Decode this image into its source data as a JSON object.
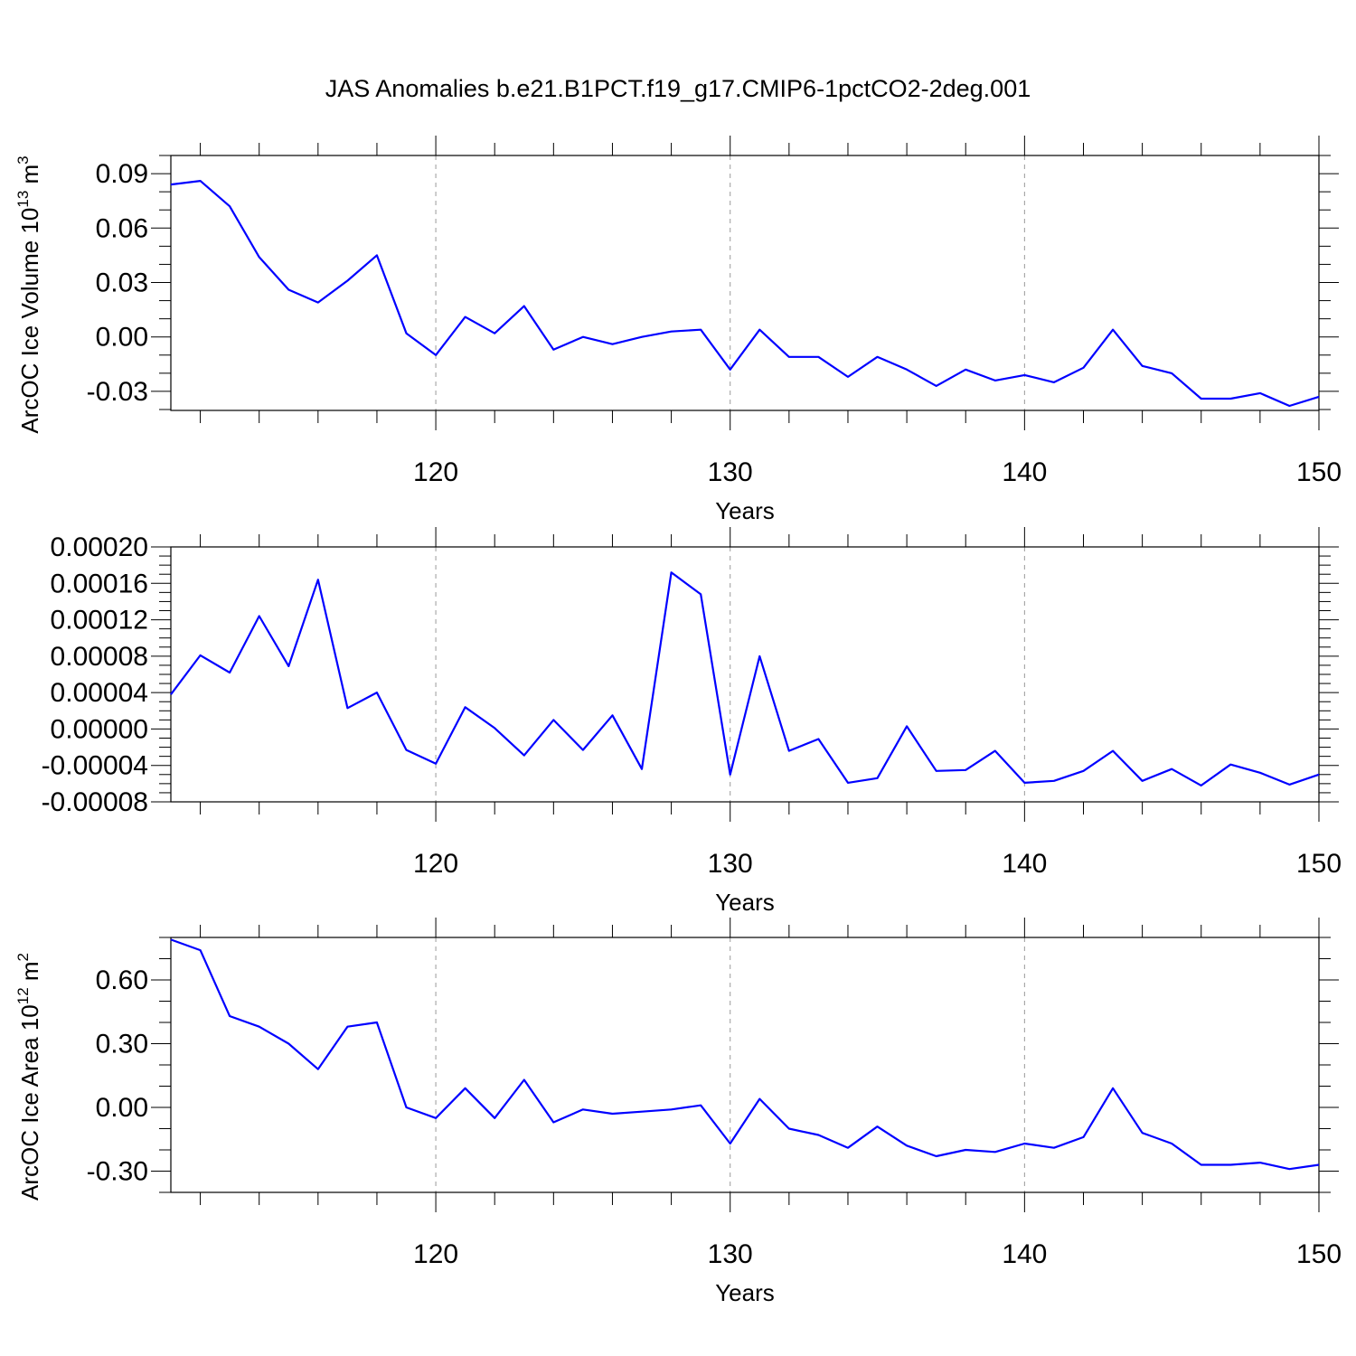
{
  "title": "JAS Anomalies b.e21.B1PCT.f19_g17.CMIP6-1pctCO2-2deg.001",
  "chart_data": [
    {
      "type": "line",
      "ylabel": "ArcOC Ice Volume",
      "ylabel_unit_base": "10",
      "ylabel_unit_exp": "13",
      "ylabel_unit_sym": "m",
      "ylabel_unit_sym_exp": "3",
      "xlabel": "Years",
      "xlim": [
        111,
        150
      ],
      "ylim": [
        -0.0405,
        0.1
      ],
      "x_ticks": [
        120,
        130,
        140,
        150
      ],
      "x_tick_labels": [
        "120",
        "130",
        "140",
        "150"
      ],
      "y_ticks": [
        -0.03,
        0.0,
        0.03,
        0.06,
        0.09
      ],
      "y_tick_labels": [
        "-0.03",
        "0.00",
        "0.03",
        "0.06",
        "0.09"
      ],
      "y_minor_step": 0.01,
      "grid": "vertical dashed at major x ticks",
      "color": "#0000ff",
      "x": [
        111,
        112,
        113,
        114,
        115,
        116,
        117,
        118,
        119,
        120,
        121,
        122,
        123,
        124,
        125,
        126,
        127,
        128,
        129,
        130,
        131,
        132,
        133,
        134,
        135,
        136,
        137,
        138,
        139,
        140,
        141,
        142,
        143,
        144,
        145,
        146,
        147,
        148,
        149,
        150
      ],
      "values": [
        0.084,
        0.086,
        0.072,
        0.044,
        0.026,
        0.019,
        0.031,
        0.045,
        0.002,
        -0.01,
        0.011,
        0.002,
        0.017,
        -0.007,
        0.0,
        -0.004,
        0.0,
        0.003,
        0.004,
        -0.018,
        0.004,
        -0.011,
        -0.011,
        -0.022,
        -0.011,
        -0.018,
        -0.027,
        -0.018,
        -0.024,
        -0.021,
        -0.025,
        -0.017,
        0.004,
        -0.016,
        -0.02,
        -0.034,
        -0.034,
        -0.031,
        -0.038,
        -0.033
      ]
    },
    {
      "type": "line",
      "ylabel": "",
      "xlabel": "Years",
      "xlim": [
        111,
        150
      ],
      "ylim": [
        -8e-05,
        0.0002
      ],
      "x_ticks": [
        120,
        130,
        140,
        150
      ],
      "x_tick_labels": [
        "120",
        "130",
        "140",
        "150"
      ],
      "y_ticks": [
        -8e-05,
        -4e-05,
        0.0,
        4e-05,
        8e-05,
        0.00012,
        0.00016,
        0.0002
      ],
      "y_tick_labels": [
        "-0.00008",
        "-0.00004",
        "0.00000",
        "0.00004",
        "0.00008",
        "0.00012",
        "0.00016",
        "0.00020"
      ],
      "y_minor_step": 1e-05,
      "grid": "vertical dashed at major x ticks",
      "color": "#0000ff",
      "x": [
        111,
        112,
        113,
        114,
        115,
        116,
        117,
        118,
        119,
        120,
        121,
        122,
        123,
        124,
        125,
        126,
        127,
        128,
        129,
        130,
        131,
        132,
        133,
        134,
        135,
        136,
        137,
        138,
        139,
        140,
        141,
        142,
        143,
        144,
        145,
        146,
        147,
        148,
        149,
        150
      ],
      "values": [
        3.8e-05,
        8.1e-05,
        6.2e-05,
        0.000124,
        6.9e-05,
        0.000164,
        2.3e-05,
        4e-05,
        -2.3e-05,
        -3.8e-05,
        2.4e-05,
        1e-06,
        -2.9e-05,
        1e-05,
        -2.3e-05,
        1.5e-05,
        -4.4e-05,
        0.000172,
        0.000148,
        -5e-05,
        8e-05,
        -2.4e-05,
        -1.1e-05,
        -5.9e-05,
        -5.4e-05,
        3e-06,
        -4.6e-05,
        -4.5e-05,
        -2.4e-05,
        -5.9e-05,
        -5.7e-05,
        -4.6e-05,
        -2.4e-05,
        -5.7e-05,
        -4.4e-05,
        -6.2e-05,
        -3.9e-05,
        -4.8e-05,
        -6.1e-05,
        -5e-05
      ]
    },
    {
      "type": "line",
      "ylabel": "ArcOC Ice Area",
      "ylabel_unit_base": "10",
      "ylabel_unit_exp": "12",
      "ylabel_unit_sym": "m",
      "ylabel_unit_sym_exp": "2",
      "xlabel": "Years",
      "xlim": [
        111,
        150
      ],
      "ylim": [
        -0.4,
        0.8
      ],
      "x_ticks": [
        120,
        130,
        140,
        150
      ],
      "x_tick_labels": [
        "120",
        "130",
        "140",
        "150"
      ],
      "y_ticks": [
        -0.3,
        0.0,
        0.3,
        0.6
      ],
      "y_tick_labels": [
        "-0.30",
        "0.00",
        "0.30",
        "0.60"
      ],
      "y_minor_step": 0.1,
      "grid": "vertical dashed at major x ticks",
      "color": "#0000ff",
      "x": [
        111,
        112,
        113,
        114,
        115,
        116,
        117,
        118,
        119,
        120,
        121,
        122,
        123,
        124,
        125,
        126,
        127,
        128,
        129,
        130,
        131,
        132,
        133,
        134,
        135,
        136,
        137,
        138,
        139,
        140,
        141,
        142,
        143,
        144,
        145,
        146,
        147,
        148,
        149,
        150
      ],
      "values": [
        0.79,
        0.74,
        0.43,
        0.38,
        0.3,
        0.18,
        0.38,
        0.4,
        0.0,
        -0.05,
        0.09,
        -0.05,
        0.13,
        -0.07,
        -0.01,
        -0.03,
        -0.02,
        -0.01,
        0.01,
        -0.17,
        0.04,
        -0.1,
        -0.13,
        -0.19,
        -0.09,
        -0.18,
        -0.23,
        -0.2,
        -0.21,
        -0.17,
        -0.19,
        -0.14,
        0.09,
        -0.12,
        -0.17,
        -0.27,
        -0.27,
        -0.26,
        -0.29,
        -0.27
      ]
    }
  ]
}
